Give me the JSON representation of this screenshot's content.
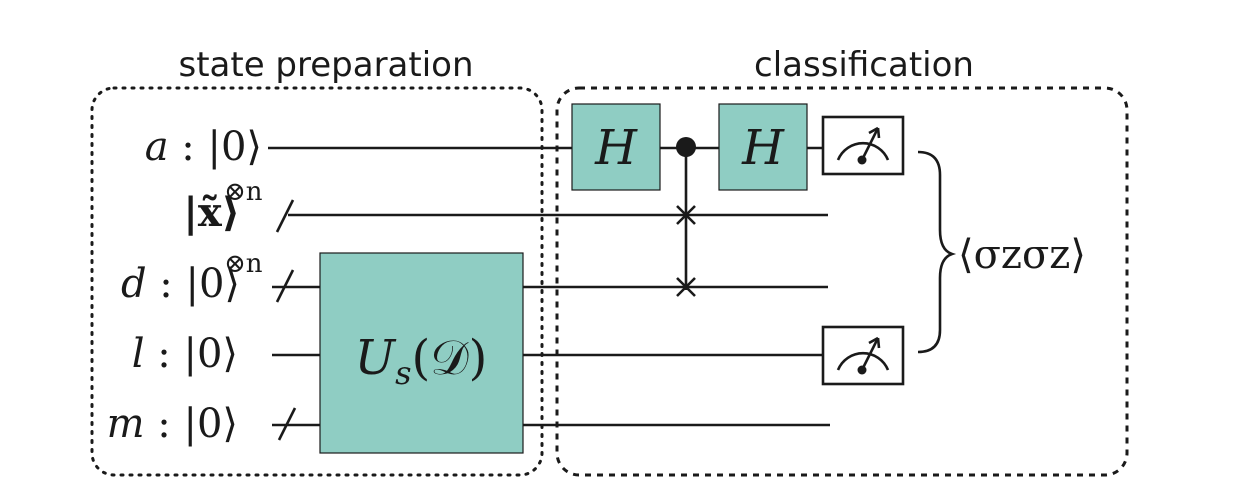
{
  "sections": {
    "state_preparation": "state preparation",
    "classification": "classification"
  },
  "qubits": [
    {
      "name": "a",
      "sep": " : ",
      "ket": "|0⟩",
      "power": ""
    },
    {
      "name": "",
      "sep": "",
      "ket": "|x̃⟩",
      "power": "⊗n"
    },
    {
      "name": "d",
      "sep": " : ",
      "ket": "|0⟩",
      "power": "⊗n"
    },
    {
      "name": "l",
      "sep": " : ",
      "ket": "|0⟩",
      "power": ""
    },
    {
      "name": "m",
      "sep": " : ",
      "ket": "|0⟩",
      "power": ""
    }
  ],
  "gates": {
    "h_first": "H",
    "h_second": "H",
    "unitary_main": "U",
    "unitary_sub": "s",
    "unitary_arg": "(𝒟)"
  },
  "output": {
    "expectation": "⟨σzσz⟩"
  },
  "colors": {
    "gate_fill": "#8fcdc3",
    "stroke": "#1a1a1a"
  }
}
